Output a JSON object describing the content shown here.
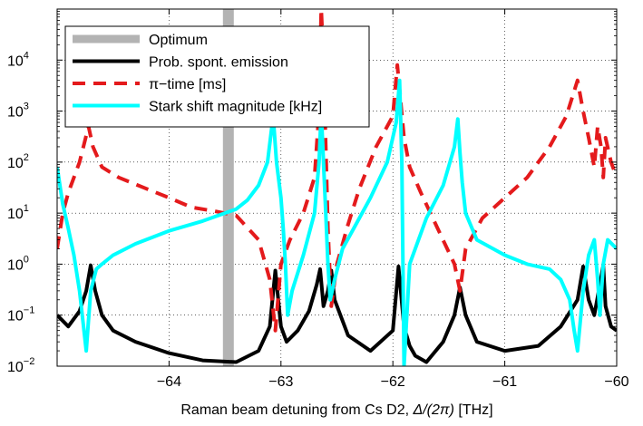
{
  "chart_data": {
    "type": "line",
    "xlabel_prefix": "Raman beam detuning from Cs D2, ",
    "xlabel_math": "Δ/(2π)",
    "xlabel_suffix": " [THz]",
    "xlim": [
      -65,
      -60
    ],
    "ylim": [
      0.01,
      100000
    ],
    "yscale": "log",
    "grid": true,
    "x_ticks": [
      -64,
      -63,
      -62,
      -61,
      -60
    ],
    "x_tick_labels": [
      "−64",
      "−63",
      "−62",
      "−61",
      "−60"
    ],
    "y_ticks": [
      {
        "value": 0.01,
        "base": "10",
        "exp": "−2"
      },
      {
        "value": 0.1,
        "base": "10",
        "exp": "−1"
      },
      {
        "value": 1,
        "base": "10",
        "exp": "0"
      },
      {
        "value": 10,
        "base": "10",
        "exp": "1"
      },
      {
        "value": 100,
        "base": "10",
        "exp": "2"
      },
      {
        "value": 1000,
        "base": "10",
        "exp": "3"
      },
      {
        "value": 10000,
        "base": "10",
        "exp": "4"
      }
    ],
    "legend_position": "top-left",
    "optimum": {
      "name": "Optimum",
      "x": -63.47,
      "color": "#b3b3b3"
    },
    "series": [
      {
        "name": "Prob. spont. emission",
        "color": "#000000",
        "dash": "solid",
        "x": [
          -65.0,
          -64.9,
          -64.8,
          -64.74,
          -64.7,
          -64.66,
          -64.6,
          -64.5,
          -64.3,
          -64.0,
          -63.7,
          -63.4,
          -63.2,
          -63.1,
          -63.05,
          -63.0,
          -62.95,
          -62.85,
          -62.75,
          -62.68,
          -62.65,
          -62.62,
          -62.58,
          -62.55,
          -62.52,
          -62.4,
          -62.2,
          -62.0,
          -61.95,
          -61.9,
          -61.85,
          -61.8,
          -61.7,
          -61.55,
          -61.45,
          -61.4,
          -61.35,
          -61.25,
          -61.0,
          -60.7,
          -60.5,
          -60.35,
          -60.3,
          -60.25,
          -60.2,
          -60.15,
          -60.12,
          -60.1,
          -60.05,
          -60.0
        ],
        "y": [
          0.1,
          0.06,
          0.12,
          0.3,
          0.95,
          0.3,
          0.1,
          0.05,
          0.03,
          0.018,
          0.013,
          0.012,
          0.02,
          0.06,
          0.75,
          0.06,
          0.03,
          0.05,
          0.12,
          0.4,
          0.8,
          0.15,
          0.3,
          0.75,
          0.2,
          0.04,
          0.02,
          0.05,
          0.9,
          0.06,
          0.025,
          0.016,
          0.012,
          0.03,
          0.1,
          0.35,
          0.1,
          0.03,
          0.02,
          0.025,
          0.06,
          0.2,
          0.9,
          0.2,
          0.1,
          0.4,
          0.95,
          0.15,
          0.06,
          0.05
        ]
      },
      {
        "name": "π−time [ms]",
        "color": "#e41a1c",
        "dash": "dashed",
        "x": [
          -65.0,
          -64.95,
          -64.9,
          -64.8,
          -64.72,
          -64.68,
          -64.6,
          -64.45,
          -64.2,
          -64.0,
          -63.8,
          -63.6,
          -63.4,
          -63.2,
          -63.1,
          -63.05,
          -63.0,
          -62.92,
          -62.8,
          -62.7,
          -62.66,
          -62.64,
          -62.62,
          -62.58,
          -62.55,
          -62.5,
          -62.4,
          -62.3,
          -62.15,
          -62.0,
          -61.96,
          -61.9,
          -61.85,
          -61.75,
          -61.6,
          -61.45,
          -61.4,
          -61.35,
          -61.2,
          -61.0,
          -60.8,
          -60.6,
          -60.45,
          -60.35,
          -60.3,
          -60.25,
          -60.2,
          -60.17,
          -60.14,
          -60.12,
          -60.1,
          -60.05,
          -60.0
        ],
        "y": [
          2,
          10,
          25,
          100,
          500,
          200,
          80,
          50,
          30,
          20,
          13,
          11,
          9,
          3,
          0.5,
          0.05,
          1,
          3,
          10,
          50,
          1000,
          100000,
          10000,
          5,
          0.15,
          1,
          6,
          30,
          200,
          800,
          8000,
          300,
          80,
          25,
          5,
          1,
          0.3,
          2,
          8,
          20,
          50,
          200,
          800,
          4000,
          1000,
          300,
          80,
          500,
          200,
          50,
          300,
          100,
          50
        ]
      },
      {
        "name": "Stark shift magnitude [kHz]",
        "color": "#00ffff",
        "dash": "solid",
        "x": [
          -65.0,
          -64.95,
          -64.9,
          -64.85,
          -64.8,
          -64.76,
          -64.74,
          -64.72,
          -64.7,
          -64.65,
          -64.6,
          -64.5,
          -64.3,
          -64.0,
          -63.7,
          -63.4,
          -63.3,
          -63.2,
          -63.12,
          -63.07,
          -63.04,
          -63.0,
          -62.98,
          -62.96,
          -62.94,
          -62.9,
          -62.8,
          -62.7,
          -62.66,
          -62.64,
          -62.62,
          -62.6,
          -62.58,
          -62.56,
          -62.52,
          -62.45,
          -62.35,
          -62.2,
          -62.05,
          -61.97,
          -61.94,
          -61.92,
          -61.9,
          -61.85,
          -61.7,
          -61.55,
          -61.45,
          -61.42,
          -61.4,
          -61.38,
          -61.35,
          -61.25,
          -61.0,
          -60.8,
          -60.6,
          -60.5,
          -60.42,
          -60.38,
          -60.35,
          -60.3,
          -60.25,
          -60.2,
          -60.17,
          -60.15,
          -60.12,
          -60.08,
          -60.0
        ],
        "y": [
          80,
          15,
          5,
          1.5,
          0.3,
          0.05,
          0.02,
          0.08,
          0.3,
          0.8,
          1,
          1.5,
          2.5,
          4.5,
          7,
          12,
          18,
          35,
          100,
          800,
          100,
          20,
          5,
          1,
          0.1,
          0.3,
          1.5,
          10,
          100,
          1000,
          100,
          10,
          1,
          0.2,
          0.5,
          2,
          5,
          20,
          100,
          600,
          4000,
          100,
          0.01,
          1,
          8,
          35,
          200,
          700,
          150,
          40,
          10,
          3,
          1.5,
          1,
          0.8,
          0.5,
          0.2,
          0.05,
          0.02,
          0.3,
          1.5,
          3,
          0.5,
          0.1,
          1,
          3,
          2
        ]
      }
    ]
  }
}
